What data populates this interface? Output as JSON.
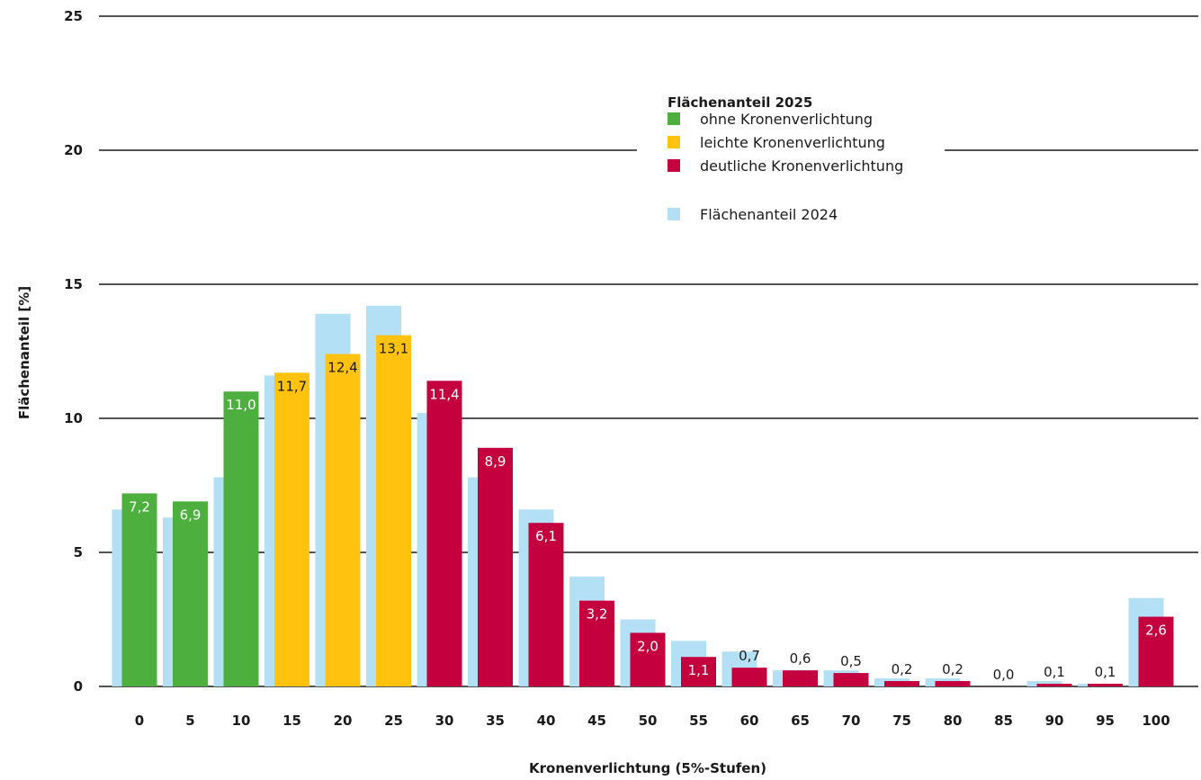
{
  "chart_data": {
    "type": "bar",
    "ylabel": "Flächenanteil [%]",
    "xlabel": "Kronenverlichtung (5%-Stufen)",
    "ylim": [
      0,
      25
    ],
    "yticks": [
      0,
      5,
      10,
      15,
      20,
      25
    ],
    "grid": "horizontal",
    "legend_placement": "top-right",
    "legend_title": "Flächenanteil 2025",
    "categories": [
      "0",
      "5",
      "10",
      "15",
      "20",
      "25",
      "30",
      "35",
      "40",
      "45",
      "50",
      "55",
      "60",
      "65",
      "70",
      "75",
      "80",
      "85",
      "90",
      "95",
      "100"
    ],
    "series": [
      {
        "name": "Flächenanteil 2025",
        "values": [
          7.2,
          6.9,
          11.0,
          11.7,
          12.4,
          13.1,
          11.4,
          8.9,
          6.1,
          3.2,
          2.0,
          1.1,
          0.7,
          0.6,
          0.5,
          0.2,
          0.2,
          0.0,
          0.1,
          0.1,
          2.6
        ],
        "labels": [
          "7,2",
          "6,9",
          "11,0",
          "11,7",
          "12,4",
          "13,1",
          "11,4",
          "8,9",
          "6,1",
          "3,2",
          "2,0",
          "1,1",
          "0,7",
          "0,6",
          "0,5",
          "0,2",
          "0,2",
          "0,0",
          "0,1",
          "0,1",
          "2,6"
        ],
        "classes": [
          "ohne",
          "ohne",
          "ohne",
          "leichte",
          "leichte",
          "leichte",
          "deutliche",
          "deutliche",
          "deutliche",
          "deutliche",
          "deutliche",
          "deutliche",
          "deutliche",
          "deutliche",
          "deutliche",
          "deutliche",
          "deutliche",
          "deutliche",
          "deutliche",
          "deutliche",
          "deutliche"
        ]
      },
      {
        "name": "Flächenanteil 2024",
        "values": [
          6.6,
          6.3,
          7.8,
          11.6,
          13.9,
          14.2,
          10.2,
          7.8,
          6.6,
          4.1,
          2.5,
          1.7,
          1.3,
          0.6,
          0.6,
          0.3,
          0.3,
          0.0,
          0.2,
          0.1,
          3.3
        ]
      }
    ],
    "legend": [
      {
        "key": "ohne",
        "label": "ohne Kronenverlichtung",
        "color": "#4caf3e"
      },
      {
        "key": "leichte",
        "label": "leichte Kronenverlichtung",
        "color": "#ffc20e"
      },
      {
        "key": "deutliche",
        "label": "deutliche Kronenverlichtung",
        "color": "#c5003e"
      },
      {
        "key": "prev",
        "label": "Flächenanteil 2024",
        "color": "#b3e0f5"
      }
    ],
    "colors": {
      "ohne": "#4caf3e",
      "leichte": "#ffc20e",
      "deutliche": "#c5003e",
      "prev": "#b3e0f5",
      "grid": "#1a1a1a"
    }
  }
}
